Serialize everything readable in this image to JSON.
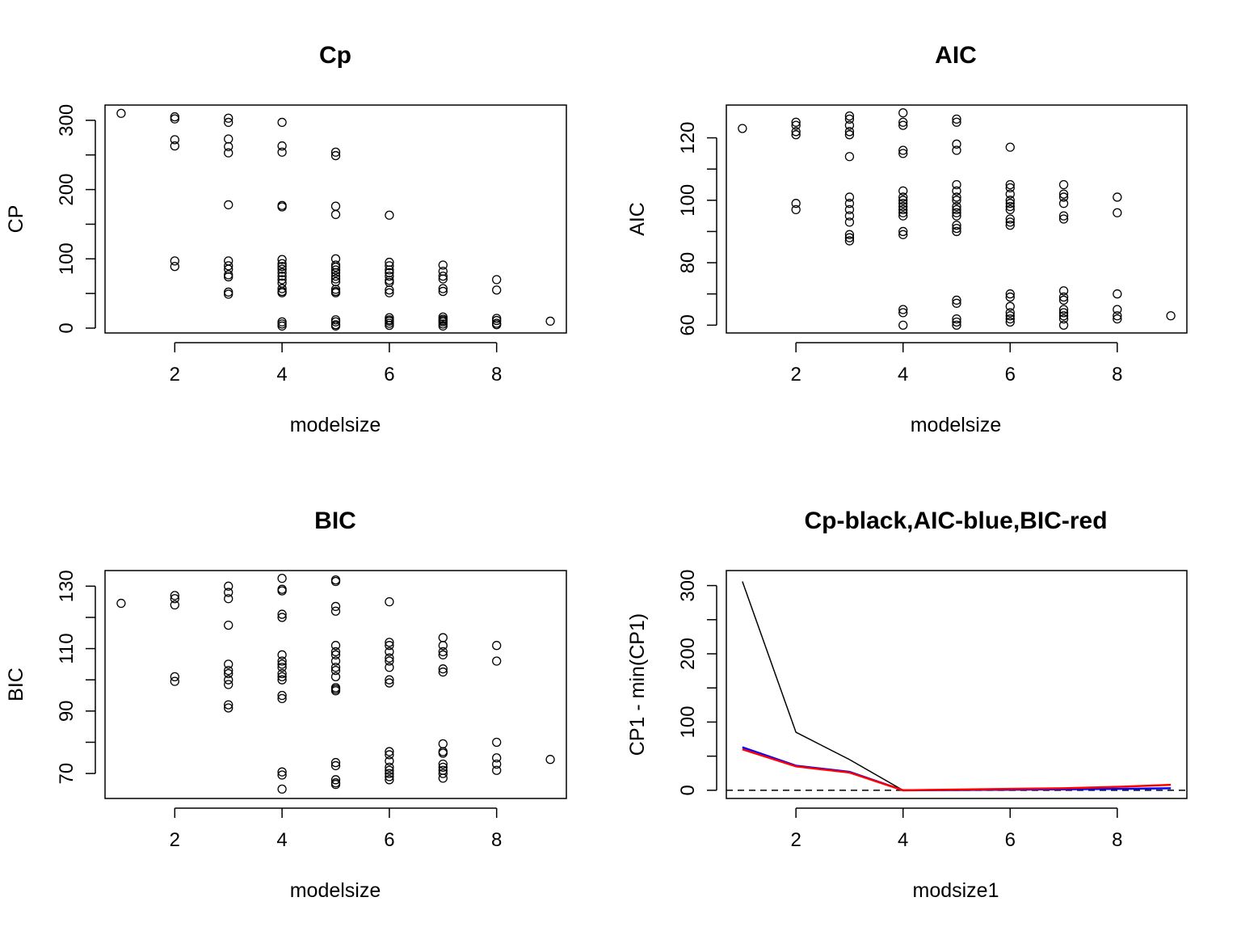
{
  "chart_data": [
    {
      "type": "scatter",
      "title": "Cp",
      "xlabel": "modelsize",
      "ylabel": "CP",
      "xlim": [
        0.7,
        9.3
      ],
      "ylim": [
        -7,
        322
      ],
      "xticks": [
        "2",
        "4",
        "6",
        "8"
      ],
      "yticks": [
        "0",
        "100",
        "200",
        "300"
      ],
      "points": [
        [
          1,
          310
        ],
        [
          2,
          305
        ],
        [
          2,
          302
        ],
        [
          2,
          272
        ],
        [
          2,
          263
        ],
        [
          2,
          97
        ],
        [
          2,
          89
        ],
        [
          3,
          303
        ],
        [
          3,
          297
        ],
        [
          3,
          273
        ],
        [
          3,
          262
        ],
        [
          3,
          253
        ],
        [
          3,
          178
        ],
        [
          3,
          97
        ],
        [
          3,
          90
        ],
        [
          3,
          85
        ],
        [
          3,
          77
        ],
        [
          3,
          74
        ],
        [
          3,
          52
        ],
        [
          3,
          49
        ],
        [
          4,
          297
        ],
        [
          4,
          263
        ],
        [
          4,
          254
        ],
        [
          4,
          177
        ],
        [
          4,
          175
        ],
        [
          4,
          99
        ],
        [
          4,
          93
        ],
        [
          4,
          89
        ],
        [
          4,
          85
        ],
        [
          4,
          80
        ],
        [
          4,
          75
        ],
        [
          4,
          70
        ],
        [
          4,
          65
        ],
        [
          4,
          57
        ],
        [
          4,
          53
        ],
        [
          4,
          51
        ],
        [
          4,
          9
        ],
        [
          4,
          6
        ],
        [
          4,
          3
        ],
        [
          5,
          254
        ],
        [
          5,
          249
        ],
        [
          5,
          176
        ],
        [
          5,
          164
        ],
        [
          5,
          100
        ],
        [
          5,
          91
        ],
        [
          5,
          88
        ],
        [
          5,
          84
        ],
        [
          5,
          80
        ],
        [
          5,
          75
        ],
        [
          5,
          71
        ],
        [
          5,
          67
        ],
        [
          5,
          56
        ],
        [
          5,
          53
        ],
        [
          5,
          51
        ],
        [
          5,
          12
        ],
        [
          5,
          9
        ],
        [
          5,
          5
        ],
        [
          5,
          3
        ],
        [
          6,
          163
        ],
        [
          6,
          95
        ],
        [
          6,
          90
        ],
        [
          6,
          84
        ],
        [
          6,
          80
        ],
        [
          6,
          75
        ],
        [
          6,
          69
        ],
        [
          6,
          66
        ],
        [
          6,
          55
        ],
        [
          6,
          51
        ],
        [
          6,
          15
        ],
        [
          6,
          12
        ],
        [
          6,
          10
        ],
        [
          6,
          7
        ],
        [
          6,
          4
        ],
        [
          7,
          91
        ],
        [
          7,
          82
        ],
        [
          7,
          75
        ],
        [
          7,
          71
        ],
        [
          7,
          57
        ],
        [
          7,
          53
        ],
        [
          7,
          16
        ],
        [
          7,
          13
        ],
        [
          7,
          11
        ],
        [
          7,
          9
        ],
        [
          7,
          6
        ],
        [
          7,
          3
        ],
        [
          8,
          70
        ],
        [
          8,
          55
        ],
        [
          8,
          14
        ],
        [
          8,
          11
        ],
        [
          8,
          7
        ],
        [
          8,
          5
        ],
        [
          9,
          10
        ]
      ]
    },
    {
      "type": "scatter",
      "title": "AIC",
      "xlabel": "modelsize",
      "ylabel": "AIC",
      "xlim": [
        0.7,
        9.3
      ],
      "ylim": [
        57.5,
        130.5
      ],
      "xticks": [
        "2",
        "4",
        "6",
        "8"
      ],
      "yticks": [
        "60",
        "80",
        "100",
        "120"
      ],
      "points": [
        [
          1,
          123
        ],
        [
          2,
          125
        ],
        [
          2,
          124
        ],
        [
          2,
          122
        ],
        [
          2,
          121
        ],
        [
          2,
          99
        ],
        [
          2,
          97
        ],
        [
          3,
          127
        ],
        [
          3,
          126
        ],
        [
          3,
          124
        ],
        [
          3,
          122
        ],
        [
          3,
          121
        ],
        [
          3,
          114
        ],
        [
          3,
          101
        ],
        [
          3,
          99
        ],
        [
          3,
          97
        ],
        [
          3,
          95
        ],
        [
          3,
          93
        ],
        [
          3,
          89
        ],
        [
          3,
          88
        ],
        [
          3,
          87
        ],
        [
          4,
          128
        ],
        [
          4,
          125
        ],
        [
          4,
          124
        ],
        [
          4,
          116
        ],
        [
          4,
          115
        ],
        [
          4,
          103
        ],
        [
          4,
          101
        ],
        [
          4,
          100
        ],
        [
          4,
          99
        ],
        [
          4,
          98
        ],
        [
          4,
          97
        ],
        [
          4,
          96
        ],
        [
          4,
          95
        ],
        [
          4,
          90
        ],
        [
          4,
          89
        ],
        [
          4,
          65
        ],
        [
          4,
          64
        ],
        [
          4,
          60
        ],
        [
          5,
          126
        ],
        [
          5,
          125
        ],
        [
          5,
          118
        ],
        [
          5,
          116
        ],
        [
          5,
          105
        ],
        [
          5,
          103
        ],
        [
          5,
          101
        ],
        [
          5,
          100
        ],
        [
          5,
          98
        ],
        [
          5,
          97
        ],
        [
          5,
          96
        ],
        [
          5,
          95
        ],
        [
          5,
          92
        ],
        [
          5,
          91
        ],
        [
          5,
          90
        ],
        [
          5,
          68
        ],
        [
          5,
          67
        ],
        [
          5,
          62
        ],
        [
          5,
          61
        ],
        [
          5,
          60
        ],
        [
          6,
          117
        ],
        [
          6,
          105
        ],
        [
          6,
          104
        ],
        [
          6,
          102
        ],
        [
          6,
          100
        ],
        [
          6,
          99
        ],
        [
          6,
          98
        ],
        [
          6,
          97
        ],
        [
          6,
          94
        ],
        [
          6,
          93
        ],
        [
          6,
          92
        ],
        [
          6,
          70
        ],
        [
          6,
          69
        ],
        [
          6,
          66
        ],
        [
          6,
          64
        ],
        [
          6,
          63
        ],
        [
          6,
          62
        ],
        [
          6,
          61
        ],
        [
          7,
          105
        ],
        [
          7,
          102
        ],
        [
          7,
          101
        ],
        [
          7,
          99
        ],
        [
          7,
          95
        ],
        [
          7,
          94
        ],
        [
          7,
          71
        ],
        [
          7,
          69
        ],
        [
          7,
          68
        ],
        [
          7,
          65
        ],
        [
          7,
          64
        ],
        [
          7,
          63
        ],
        [
          7,
          62
        ],
        [
          7,
          60
        ],
        [
          8,
          101
        ],
        [
          8,
          96
        ],
        [
          8,
          70
        ],
        [
          8,
          65
        ],
        [
          8,
          63
        ],
        [
          8,
          62
        ],
        [
          9,
          63
        ]
      ]
    },
    {
      "type": "scatter",
      "title": "BIC",
      "xlabel": "modelsize",
      "ylabel": "BIC",
      "xlim": [
        0.7,
        9.3
      ],
      "ylim": [
        62,
        135
      ],
      "xticks": [
        "2",
        "4",
        "6",
        "8"
      ],
      "yticks": [
        "70",
        "90",
        "110",
        "130"
      ],
      "points": [
        [
          1,
          124.5
        ],
        [
          2,
          127
        ],
        [
          2,
          126
        ],
        [
          2,
          124
        ],
        [
          2,
          101
        ],
        [
          2,
          99.5
        ],
        [
          3,
          130
        ],
        [
          3,
          128
        ],
        [
          3,
          126
        ],
        [
          3,
          117.5
        ],
        [
          3,
          105
        ],
        [
          3,
          103
        ],
        [
          3,
          102
        ],
        [
          3,
          100
        ],
        [
          3,
          98.5
        ],
        [
          3,
          92
        ],
        [
          3,
          91
        ],
        [
          4,
          132.5
        ],
        [
          4,
          129
        ],
        [
          4,
          128.5
        ],
        [
          4,
          121
        ],
        [
          4,
          120
        ],
        [
          4,
          108
        ],
        [
          4,
          106
        ],
        [
          4,
          105
        ],
        [
          4,
          104
        ],
        [
          4,
          102
        ],
        [
          4,
          101
        ],
        [
          4,
          100
        ],
        [
          4,
          95
        ],
        [
          4,
          94
        ],
        [
          4,
          70.5
        ],
        [
          4,
          69.5
        ],
        [
          4,
          65
        ],
        [
          5,
          132
        ],
        [
          5,
          131.5
        ],
        [
          5,
          123.5
        ],
        [
          5,
          122
        ],
        [
          5,
          111
        ],
        [
          5,
          109
        ],
        [
          5,
          108
        ],
        [
          5,
          106
        ],
        [
          5,
          104
        ],
        [
          5,
          103
        ],
        [
          5,
          101
        ],
        [
          5,
          97.5
        ],
        [
          5,
          97
        ],
        [
          5,
          96.5
        ],
        [
          5,
          73.5
        ],
        [
          5,
          72.5
        ],
        [
          5,
          68
        ],
        [
          5,
          67
        ],
        [
          5,
          66.5
        ],
        [
          6,
          125
        ],
        [
          6,
          112
        ],
        [
          6,
          111
        ],
        [
          6,
          109
        ],
        [
          6,
          107
        ],
        [
          6,
          106
        ],
        [
          6,
          104
        ],
        [
          6,
          100
        ],
        [
          6,
          99
        ],
        [
          6,
          77
        ],
        [
          6,
          76
        ],
        [
          6,
          74
        ],
        [
          6,
          72
        ],
        [
          6,
          71
        ],
        [
          6,
          70
        ],
        [
          6,
          69
        ],
        [
          6,
          68
        ],
        [
          7,
          113.5
        ],
        [
          7,
          111
        ],
        [
          7,
          109
        ],
        [
          7,
          108
        ],
        [
          7,
          103.5
        ],
        [
          7,
          102.5
        ],
        [
          7,
          79.5
        ],
        [
          7,
          77
        ],
        [
          7,
          76.5
        ],
        [
          7,
          73
        ],
        [
          7,
          72
        ],
        [
          7,
          71
        ],
        [
          7,
          70
        ],
        [
          7,
          68.5
        ],
        [
          8,
          111
        ],
        [
          8,
          106
        ],
        [
          8,
          80
        ],
        [
          8,
          75
        ],
        [
          8,
          73
        ],
        [
          8,
          71
        ],
        [
          9,
          74.5
        ]
      ]
    },
    {
      "type": "line",
      "title": "Cp-black,AIC-blue,BIC-red",
      "xlabel": "modsize1",
      "ylabel": "CP1 - min(CP1)",
      "xlim": [
        0.7,
        9.3
      ],
      "ylim": [
        -12,
        322
      ],
      "xticks": [
        "2",
        "4",
        "6",
        "8"
      ],
      "yticks": [
        "0",
        "100",
        "200",
        "300"
      ],
      "x": [
        1,
        2,
        3,
        4,
        5,
        6,
        7,
        8,
        9
      ],
      "series": [
        {
          "color": "#000000",
          "values": [
            306,
            85,
            45,
            0,
            0,
            0.5,
            1,
            2,
            3
          ]
        },
        {
          "color": "#0000ff",
          "values": [
            63,
            36,
            27,
            0,
            0.5,
            1,
            1.5,
            2,
            3
          ]
        },
        {
          "color": "#ff0000",
          "values": [
            60,
            35,
            26,
            0,
            1,
            2,
            3,
            5,
            8
          ]
        }
      ],
      "reference_line": {
        "y": 0,
        "style": "dashed",
        "color": "#000000"
      }
    }
  ]
}
